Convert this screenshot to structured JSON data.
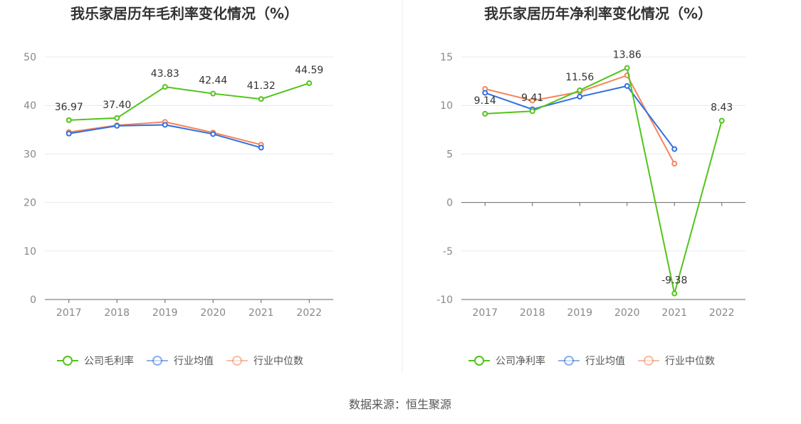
{
  "source": "数据来源：恒生聚源",
  "colors": {
    "company": "#52c41a",
    "avg": "#2f6fe0",
    "median": "#f5845a"
  },
  "chart_data": [
    {
      "type": "line",
      "title": "我乐家居历年毛利率变化情况（%）",
      "categories": [
        "2017",
        "2018",
        "2019",
        "2020",
        "2021",
        "2022"
      ],
      "ylim": [
        0,
        50
      ],
      "yticks": [
        0,
        10,
        20,
        30,
        40,
        50
      ],
      "grid": true,
      "legend": "bottom",
      "series": [
        {
          "name": "公司毛利率",
          "values": [
            36.97,
            37.4,
            43.83,
            42.44,
            41.32,
            44.59
          ],
          "labels": true
        },
        {
          "name": "行业均值",
          "values": [
            34.2,
            35.8,
            36.0,
            34.1,
            31.3,
            null
          ]
        },
        {
          "name": "行业中位数",
          "values": [
            34.5,
            35.9,
            36.6,
            34.4,
            31.9,
            null
          ]
        }
      ]
    },
    {
      "type": "line",
      "title": "我乐家居历年净利率变化情况（%）",
      "categories": [
        "2017",
        "2018",
        "2019",
        "2020",
        "2021",
        "2022"
      ],
      "ylim": [
        -10,
        15
      ],
      "yticks": [
        -10,
        -5,
        0,
        5,
        10,
        15
      ],
      "grid": true,
      "legend": "bottom",
      "series": [
        {
          "name": "公司净利率",
          "values": [
            9.14,
            9.41,
            11.56,
            13.86,
            -9.38,
            8.43
          ],
          "labels": true
        },
        {
          "name": "行业均值",
          "values": [
            11.3,
            9.6,
            10.9,
            12.0,
            5.5,
            null
          ]
        },
        {
          "name": "行业中位数",
          "values": [
            11.7,
            10.5,
            11.4,
            13.1,
            4.0,
            null
          ]
        }
      ]
    }
  ]
}
